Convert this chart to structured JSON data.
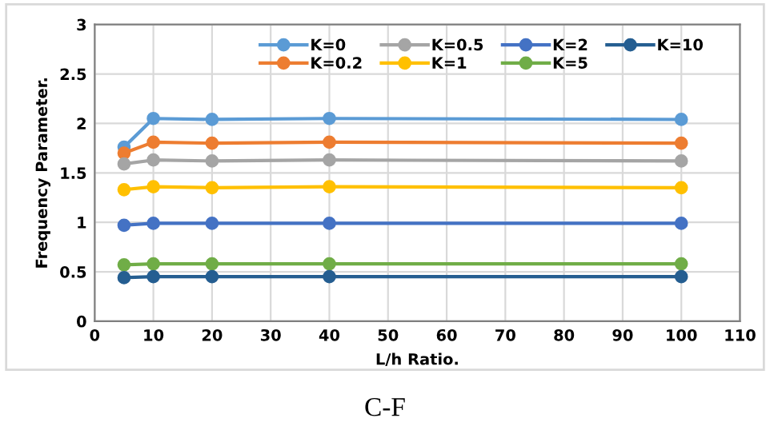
{
  "chart_data": {
    "type": "line",
    "xlabel": "L/h Ratio.",
    "ylabel": "Frequency Parameter.",
    "annotations": [
      "C-F"
    ],
    "x": [
      5,
      10,
      20,
      40,
      100
    ],
    "series": [
      {
        "name": "K=0",
        "color": "#5b9bd5",
        "values": [
          1.76,
          2.05,
          2.04,
          2.05,
          2.04
        ]
      },
      {
        "name": "K=0.2",
        "color": "#ed7d31",
        "values": [
          1.7,
          1.81,
          1.8,
          1.81,
          1.8
        ]
      },
      {
        "name": "K=0.5",
        "color": "#a5a5a5",
        "values": [
          1.59,
          1.63,
          1.62,
          1.63,
          1.62
        ]
      },
      {
        "name": "K=1",
        "color": "#ffc000",
        "values": [
          1.33,
          1.36,
          1.35,
          1.36,
          1.35
        ]
      },
      {
        "name": "K=2",
        "color": "#4472c4",
        "values": [
          0.97,
          0.99,
          0.99,
          0.99,
          0.99
        ]
      },
      {
        "name": "K=5",
        "color": "#70ad47",
        "values": [
          0.57,
          0.58,
          0.58,
          0.58,
          0.58
        ]
      },
      {
        "name": "K=10",
        "color": "#255e91",
        "values": [
          0.44,
          0.45,
          0.45,
          0.45,
          0.45
        ]
      }
    ],
    "xlim": [
      0,
      110
    ],
    "xticks": [
      0,
      10,
      20,
      30,
      40,
      50,
      60,
      70,
      80,
      90,
      100,
      110
    ],
    "ylim": [
      0,
      3
    ],
    "yticks": [
      0,
      0.5,
      1,
      1.5,
      2,
      2.5,
      3
    ],
    "grid": true,
    "legend": "top",
    "marker": "circle",
    "line_style": "solid"
  }
}
